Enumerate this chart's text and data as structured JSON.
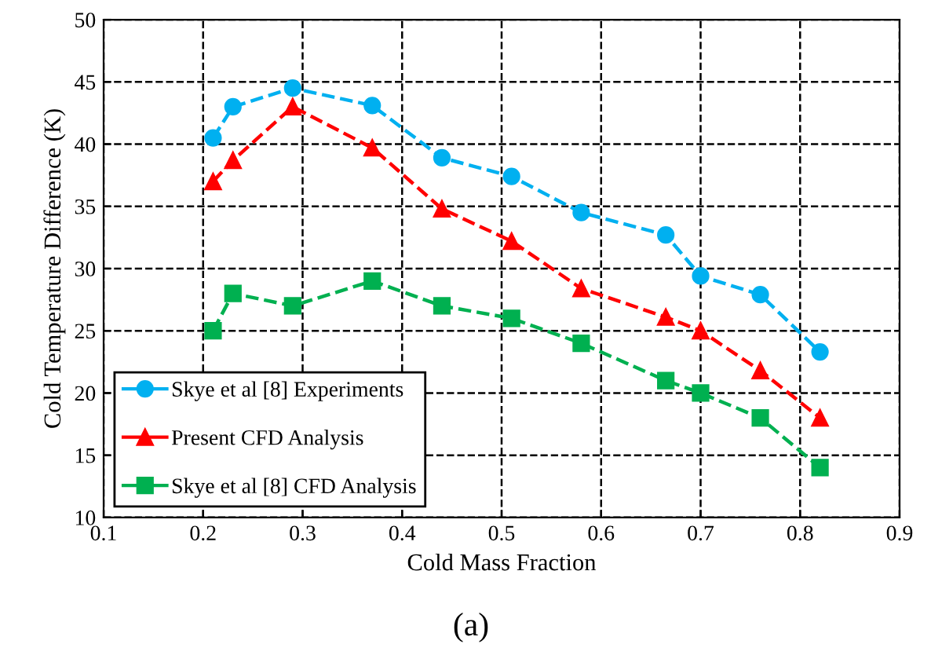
{
  "chart_data": {
    "type": "line",
    "xlabel": "Cold Mass Fraction",
    "ylabel": "Cold Temperature Difference (K)",
    "annotations": [
      "(a)"
    ],
    "xlim": [
      0.1,
      0.9
    ],
    "xticks": [
      0.1,
      0.2,
      0.3,
      0.4,
      0.5,
      0.6,
      0.7,
      0.8,
      0.9
    ],
    "ylim": [
      10,
      50
    ],
    "yticks": [
      10,
      15,
      20,
      25,
      30,
      35,
      40,
      45,
      50
    ],
    "grid": true,
    "legend": "bottom left",
    "line_style": "dashed",
    "series": [
      {
        "name": "Skye et al [8] Experiments",
        "color": "#00b0f0",
        "marker": "circle",
        "x": [
          0.21,
          0.23,
          0.29,
          0.37,
          0.44,
          0.51,
          0.58,
          0.665,
          0.7,
          0.76,
          0.82
        ],
        "values": [
          40.5,
          43,
          44.5,
          43.1,
          38.9,
          37.4,
          34.5,
          32.7,
          29.4,
          27.9,
          23.3
        ]
      },
      {
        "name": "Present CFD Analysis",
        "color": "#ff0000",
        "marker": "triangle",
        "x": [
          0.21,
          0.23,
          0.29,
          0.37,
          0.44,
          0.51,
          0.58,
          0.665,
          0.7,
          0.76,
          0.82
        ],
        "values": [
          37,
          38.7,
          43,
          39.7,
          34.8,
          32.2,
          28.4,
          26.1,
          25,
          21.8,
          18
        ]
      },
      {
        "name": "Skye et al [8] CFD Analysis",
        "color": "#00b050",
        "marker": "square",
        "x": [
          0.21,
          0.23,
          0.29,
          0.37,
          0.44,
          0.51,
          0.58,
          0.665,
          0.7,
          0.76,
          0.82
        ],
        "values": [
          25,
          28,
          27,
          29,
          27,
          26,
          24,
          21,
          20,
          18,
          14
        ]
      }
    ]
  }
}
